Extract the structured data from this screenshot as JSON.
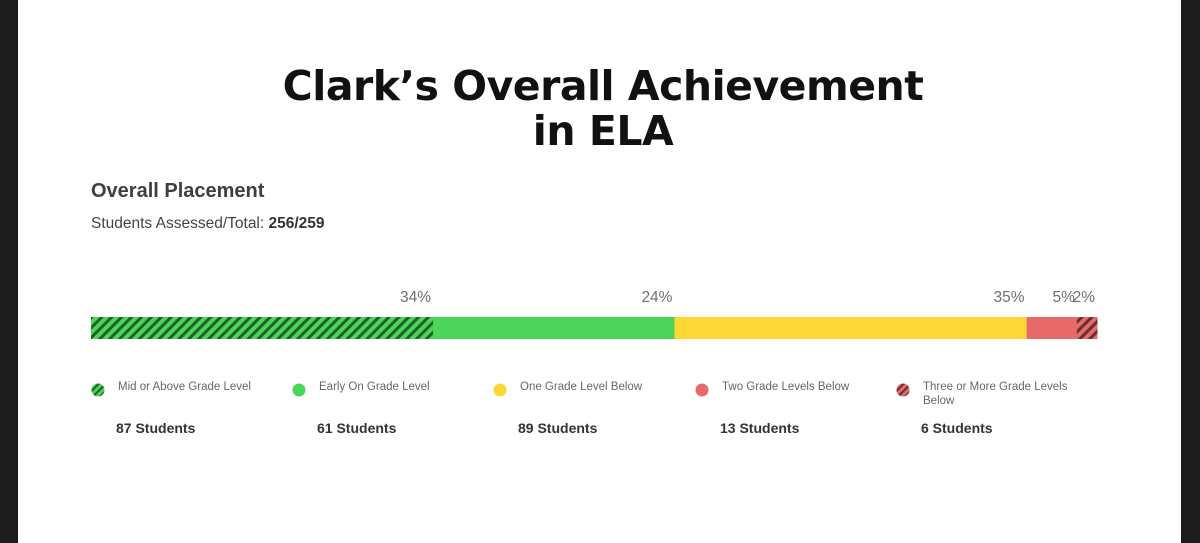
{
  "title_line1": "Clark’s Overall Achievement",
  "title_line2": "in ELA",
  "placement": {
    "heading": "Overall Placement",
    "assessed_label": "Students Assessed/Total: ",
    "assessed_value": "256/259"
  },
  "chart_data": {
    "type": "bar",
    "orientation": "horizontal-stacked-100",
    "grid": false,
    "legend_position": "bottom",
    "segments": [
      {
        "label": "Mid or Above Grade Level",
        "percent": 34,
        "percent_label": "34%",
        "students": 87,
        "students_label": "87 Students",
        "color": "#49d65b",
        "hatched": true
      },
      {
        "label": "Early On Grade Level",
        "percent": 24,
        "percent_label": "24%",
        "students": 61,
        "students_label": "61 Students",
        "color": "#49d65b",
        "hatched": false
      },
      {
        "label": "One Grade Level Below",
        "percent": 35,
        "percent_label": "35%",
        "students": 89,
        "students_label": "89 Students",
        "color": "#fdd834",
        "hatched": false
      },
      {
        "label": "Two Grade Levels Below",
        "percent": 5,
        "percent_label": "5%",
        "students": 13,
        "students_label": "13 Students",
        "color": "#e8696a",
        "hatched": false
      },
      {
        "label": "Three or More Grade Levels Below",
        "percent": 2,
        "percent_label": "2%",
        "students": 6,
        "students_label": "6 Students",
        "color": "#e8696a",
        "hatched": true
      }
    ]
  }
}
